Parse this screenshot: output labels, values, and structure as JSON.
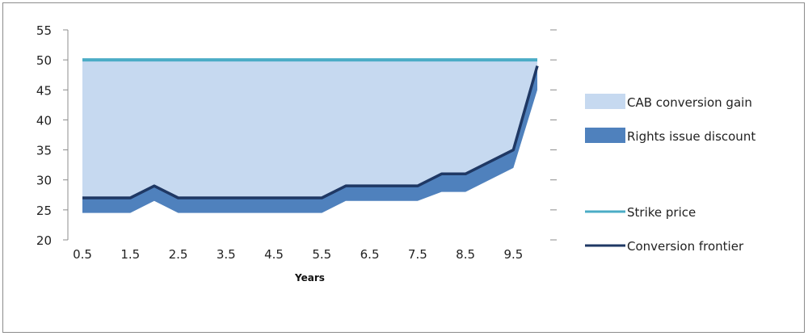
{
  "chart_data": {
    "type": "area",
    "xlabel": "Years",
    "ylabel": "",
    "ylim": [
      20,
      55
    ],
    "yticks": [
      20,
      25,
      30,
      35,
      40,
      45,
      50,
      55
    ],
    "x_tick_labels": [
      "0.5",
      "1.5",
      "2.5",
      "3.5",
      "4.5",
      "5.5",
      "6.5",
      "7.5",
      "8.5",
      "9.5"
    ],
    "x": [
      0.5,
      1,
      1.5,
      2,
      2.5,
      3,
      3.5,
      4,
      4.5,
      5,
      5.5,
      6,
      6.5,
      7,
      7.5,
      8,
      8.5,
      9,
      9.5,
      10
    ],
    "series": [
      {
        "name": "CAB conversion gain",
        "kind": "area",
        "color": "#c6d9f0",
        "values": [
          50,
          50,
          50,
          50,
          50,
          50,
          50,
          50,
          50,
          50,
          50,
          50,
          50,
          50,
          50,
          50,
          50,
          50,
          50,
          50
        ]
      },
      {
        "name": "Rights issue discount",
        "kind": "area",
        "color": "#4f81bd",
        "values": [
          24.5,
          24.5,
          24.5,
          26.5,
          24.5,
          24.5,
          24.5,
          24.5,
          24.5,
          24.5,
          24.5,
          26.5,
          26.5,
          26.5,
          26.5,
          28,
          28,
          30,
          32,
          45
        ]
      },
      {
        "name": "Strike price",
        "kind": "line",
        "color": "#4bacc6",
        "values": [
          50,
          50,
          50,
          50,
          50,
          50,
          50,
          50,
          50,
          50,
          50,
          50,
          50,
          50,
          50,
          50,
          50,
          50,
          50,
          50
        ]
      },
      {
        "name": "Conversion frontier",
        "kind": "line",
        "color": "#1f3864",
        "values": [
          27,
          27,
          27,
          29,
          27,
          27,
          27,
          27,
          27,
          27,
          27,
          29,
          29,
          29,
          29,
          31,
          31,
          33,
          35,
          49
        ]
      }
    ],
    "legend_position": "right",
    "grid": false
  }
}
